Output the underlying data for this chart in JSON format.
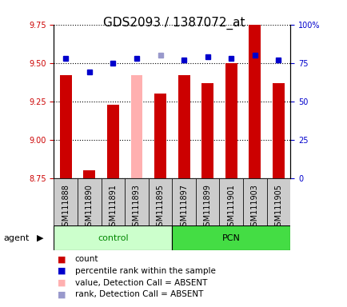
{
  "title": "GDS2093 / 1387072_at",
  "samples": [
    "GSM111888",
    "GSM111890",
    "GSM111891",
    "GSM111893",
    "GSM111895",
    "GSM111897",
    "GSM111899",
    "GSM111901",
    "GSM111903",
    "GSM111905"
  ],
  "bar_values": [
    9.42,
    8.8,
    9.23,
    9.42,
    9.3,
    9.42,
    9.37,
    9.5,
    9.75,
    9.37
  ],
  "bar_colors": [
    "#cc0000",
    "#cc0000",
    "#cc0000",
    "#ffb0b0",
    "#cc0000",
    "#cc0000",
    "#cc0000",
    "#cc0000",
    "#cc0000",
    "#cc0000"
  ],
  "dot_values_pct": [
    78,
    69,
    75,
    78,
    80,
    77,
    79,
    78,
    80,
    77
  ],
  "dot_colors": [
    "#0000cc",
    "#0000cc",
    "#0000cc",
    "#0000cc",
    "#9999cc",
    "#0000cc",
    "#0000cc",
    "#0000cc",
    "#0000cc",
    "#0000cc"
  ],
  "absent_bar_index": 3,
  "absent_dot_index": 4,
  "ylim_left": [
    8.75,
    9.75
  ],
  "ylim_right": [
    0,
    100
  ],
  "yticks_left": [
    8.75,
    9.0,
    9.25,
    9.5,
    9.75
  ],
  "yticks_right": [
    0,
    25,
    50,
    75,
    100
  ],
  "ytick_labels_right": [
    "0",
    "25",
    "50",
    "75",
    "100%"
  ],
  "bar_bottom": 8.75,
  "bar_width": 0.5,
  "group_control_label": "control",
  "group_pcn_label": "PCN",
  "group_control_color": "#ccffcc",
  "group_pcn_color": "#44dd44",
  "group_control_text_color": "#008800",
  "group_pcn_text_color": "#000000",
  "agent_label": "agent",
  "legend_items": [
    {
      "label": "count",
      "color": "#cc0000"
    },
    {
      "label": "percentile rank within the sample",
      "color": "#0000cc"
    },
    {
      "label": "value, Detection Call = ABSENT",
      "color": "#ffb0b0"
    },
    {
      "label": "rank, Detection Call = ABSENT",
      "color": "#9999cc"
    }
  ],
  "grid_color": "black",
  "grid_style": "dotted",
  "grid_lw": 0.8,
  "plot_bg": "#ffffff",
  "tick_gray_bg": "#cccccc",
  "left_tick_color": "#cc0000",
  "right_tick_color": "#0000cc",
  "title_fontsize": 11,
  "tick_fontsize": 7,
  "legend_fontsize": 7.5,
  "group_fontsize": 8
}
